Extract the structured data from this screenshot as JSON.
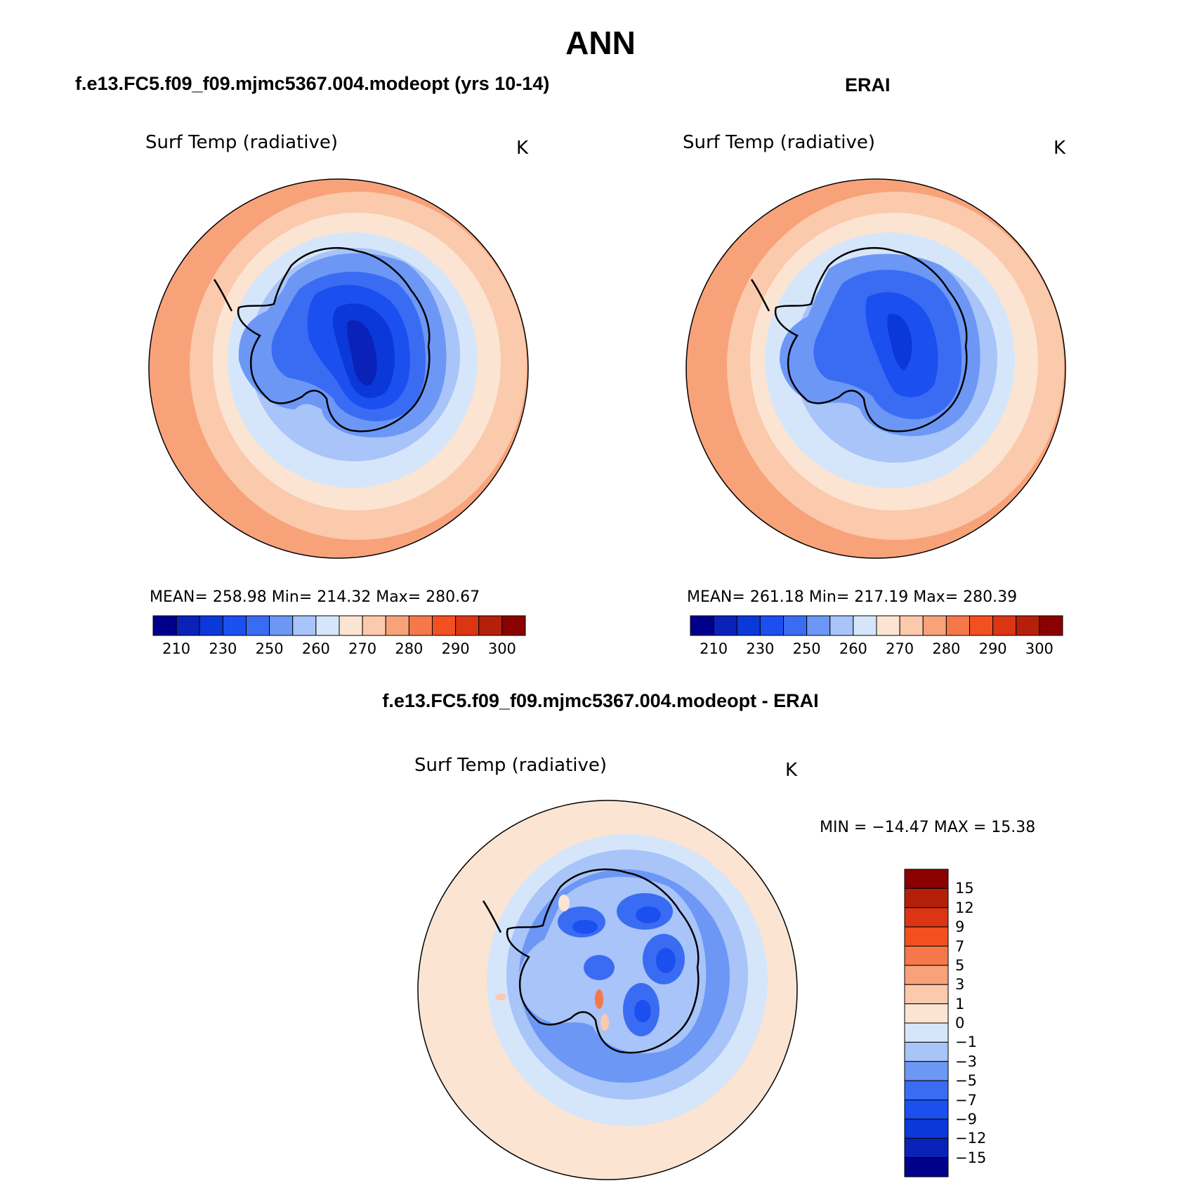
{
  "figure": {
    "season_title": "ANN",
    "top_left_case": "f.e13.FC5.f09_f09.mjmc5367.004.modeopt (yrs 10-14)",
    "top_right_case": "ERAI",
    "bottom_case": "f.e13.FC5.f09_f09.mjmc5367.004.modeopt - ERAI"
  },
  "panels": [
    {
      "variable": "Surf Temp (radiative)",
      "units": "K",
      "stats": "MEAN= 258.98   Min= 214.32   Max= 280.67",
      "colorbar_labels": [
        "210",
        "230",
        "250",
        "260",
        "270",
        "280",
        "290",
        "300"
      ]
    },
    {
      "variable": "Surf Temp (radiative)",
      "units": "K",
      "stats": "MEAN= 261.18   Min= 217.19   Max= 280.39",
      "colorbar_labels": [
        "210",
        "230",
        "250",
        "260",
        "270",
        "280",
        "290",
        "300"
      ]
    },
    {
      "variable": "Surf Temp (radiative)",
      "units": "K",
      "stats": "MIN = −14.47 MAX =   15.38",
      "colorbar_labels": [
        "15",
        "12",
        "9",
        "7",
        "5",
        "3",
        "1",
        "0",
        "−1",
        "−3",
        "−5",
        "−7",
        "−9",
        "−12",
        "−15"
      ]
    }
  ],
  "colorbar_abs": [
    "#00008b",
    "#0a22b8",
    "#0b38d8",
    "#1c4ff0",
    "#3a6cf3",
    "#6c97f5",
    "#a8c4f8",
    "#d6e6fa",
    "#fbe4d2",
    "#fbc9ac",
    "#f8a27a",
    "#f5784a",
    "#f25020",
    "#db3514",
    "#b4200a",
    "#8b0000"
  ],
  "colorbar_diff": [
    "#8b0000",
    "#b4200a",
    "#db3514",
    "#f25020",
    "#f5784a",
    "#f8a27a",
    "#fbc9ac",
    "#fbe4d2",
    "#d6e6fa",
    "#a8c4f8",
    "#6c97f5",
    "#3a6cf3",
    "#1c4ff0",
    "#0b38d8",
    "#0a22b8",
    "#00008b"
  ]
}
